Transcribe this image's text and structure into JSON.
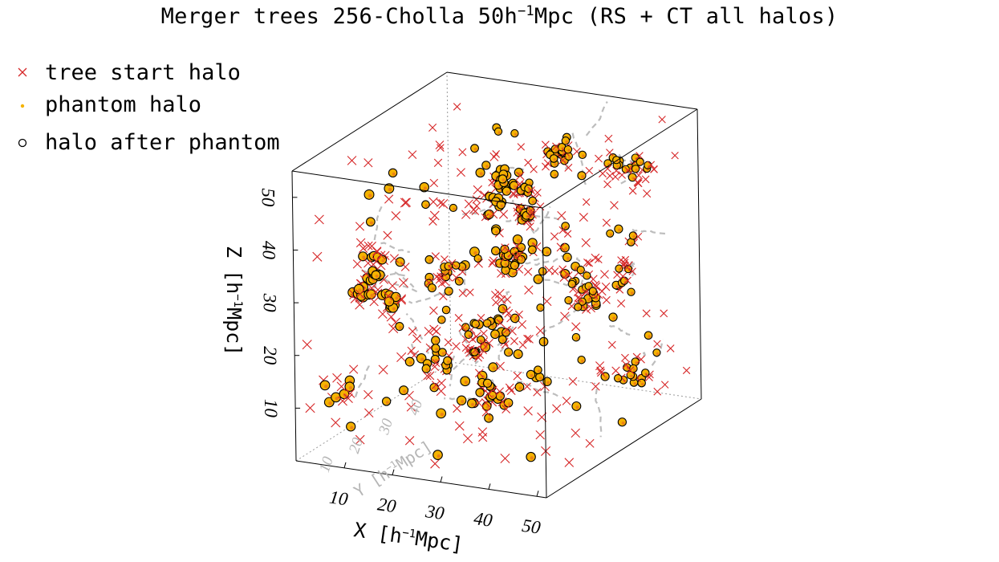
{
  "chart_data": {
    "type": "scatter3d",
    "title_parts": {
      "pre": "Merger trees 256-Cholla 50h",
      "sup": "−1",
      "post": "Mpc (RS + CT all halos)"
    },
    "legend": {
      "placement": "top-left",
      "entries": [
        {
          "label": "tree start halo",
          "marker": "x",
          "color": "#d62728"
        },
        {
          "label": "phantom halo",
          "marker": "dot",
          "color": "#f5b301"
        },
        {
          "label": "halo after phantom",
          "marker": "open-circle",
          "color": "#000000"
        }
      ]
    },
    "axes": {
      "x": {
        "label_pre": "X [h",
        "label_sup": "−1",
        "label_post": "Mpc]",
        "ticks": [
          10,
          20,
          30,
          40,
          50
        ],
        "range": [
          0,
          52
        ]
      },
      "y": {
        "label_pre": "Y [h",
        "label_sup": "−1",
        "label_post": "Mpc]",
        "ticks": [
          10,
          20,
          30,
          40
        ],
        "range": [
          0,
          52
        ]
      },
      "z": {
        "label_pre": "Z [h",
        "label_sup": "−1",
        "label_post": "Mpc]",
        "ticks": [
          10,
          20,
          30,
          40,
          50
        ],
        "range": [
          0,
          55
        ]
      }
    },
    "colors": {
      "tree_start": "#d62728",
      "phantom": "#f5b301",
      "after_phantom": "#000000",
      "track": "#bdbdbd",
      "box": "#000000"
    },
    "n_tree_start_halos": 420,
    "n_halo_groups": 330
  }
}
